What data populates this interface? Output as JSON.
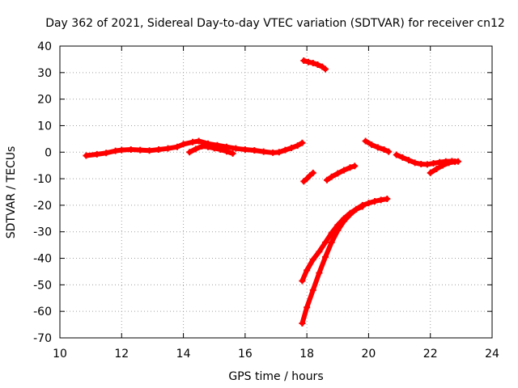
{
  "chart_data": {
    "type": "scatter",
    "title": "Day 362 of 2021, Sidereal Day-to-day VTEC variation (SDTVAR) for receiver cn12",
    "xlabel": "GPS time / hours",
    "ylabel": "SDTVAR / TECUs",
    "xlim": [
      10,
      24
    ],
    "ylim": [
      -70,
      40
    ],
    "xticks": [
      "10",
      "12",
      "14",
      "16",
      "18",
      "20",
      "22",
      "24"
    ],
    "yticks": [
      "40",
      "30",
      "20",
      "10",
      "0",
      "-10",
      "-20",
      "-30",
      "-40",
      "-50",
      "-60",
      "-70"
    ],
    "xtick_values": [
      10,
      12,
      14,
      16,
      18,
      20,
      22,
      24
    ],
    "ytick_values": [
      40,
      30,
      20,
      10,
      0,
      -10,
      -20,
      -30,
      -40,
      -50,
      -60,
      -70
    ],
    "grid": true,
    "marker_color": "#ff0000",
    "series": [
      {
        "x": [
          10.85,
          11.2,
          11.5,
          11.8,
          12.0,
          12.3,
          12.6,
          12.9,
          13.2,
          13.5,
          13.8,
          14.0,
          14.3,
          14.5,
          14.8,
          15.1,
          15.4,
          15.7,
          16.0,
          16.3,
          16.6,
          16.9,
          17.1,
          17.3,
          17.5,
          17.7,
          17.85
        ],
        "y": [
          -1.3,
          -0.8,
          -0.3,
          0.5,
          0.8,
          1.0,
          0.8,
          0.6,
          1.0,
          1.4,
          2.0,
          3.0,
          3.8,
          4.2,
          3.2,
          2.6,
          2.0,
          1.4,
          1.0,
          0.7,
          0.2,
          -0.2,
          0.0,
          0.8,
          1.6,
          2.5,
          3.5
        ]
      },
      {
        "x": [
          14.2,
          14.4,
          14.6,
          14.8,
          15.0,
          15.2,
          15.4,
          15.6
        ],
        "y": [
          0.0,
          1.2,
          2.2,
          2.0,
          1.5,
          1.0,
          0.3,
          -0.5
        ]
      },
      {
        "x": [
          17.9,
          18.0,
          18.1,
          18.2
        ],
        "y": [
          -11.0,
          -10.0,
          -8.8,
          -7.8
        ]
      },
      {
        "x": [
          17.9,
          18.05,
          18.2,
          18.35,
          18.5,
          18.6
        ],
        "y": [
          34.5,
          34.0,
          33.6,
          33.0,
          32.2,
          31.3
        ]
      },
      {
        "x": [
          18.65,
          18.8,
          19.0,
          19.2,
          19.4,
          19.55
        ],
        "y": [
          -10.5,
          -9.3,
          -8.0,
          -6.8,
          -5.8,
          -5.2
        ]
      },
      {
        "x": [
          17.85,
          18.0,
          18.2,
          18.4,
          18.6,
          18.8,
          19.0,
          19.2,
          19.4,
          19.6,
          19.8,
          20.0,
          20.2,
          20.4,
          20.6
        ],
        "y": [
          -48.5,
          -44.5,
          -40.5,
          -37.5,
          -34.0,
          -30.5,
          -27.5,
          -25.0,
          -23.0,
          -21.5,
          -20.0,
          -19.2,
          -18.5,
          -18.0,
          -17.6
        ]
      },
      {
        "x": [
          17.85,
          18.0,
          18.2,
          18.4,
          18.6,
          18.8,
          19.0,
          19.2,
          19.4,
          19.6,
          19.8
        ],
        "y": [
          -64.5,
          -58.5,
          -52.0,
          -45.5,
          -39.5,
          -34.0,
          -29.5,
          -26.0,
          -23.5,
          -21.5,
          -20.5
        ]
      },
      {
        "x": [
          19.9,
          20.1,
          20.3,
          20.5,
          20.65
        ],
        "y": [
          4.2,
          2.8,
          1.8,
          1.0,
          0.2
        ]
      },
      {
        "x": [
          20.9,
          21.1,
          21.3,
          21.5,
          21.7,
          21.9,
          22.1,
          22.3,
          22.5,
          22.7,
          22.9
        ],
        "y": [
          -1.0,
          -2.0,
          -3.0,
          -4.0,
          -4.5,
          -4.6,
          -4.2,
          -3.8,
          -3.5,
          -3.4,
          -3.5
        ]
      },
      {
        "x": [
          22.0,
          22.2,
          22.4,
          22.6,
          22.8
        ],
        "y": [
          -7.8,
          -6.3,
          -5.0,
          -4.0,
          -3.6
        ]
      }
    ]
  }
}
